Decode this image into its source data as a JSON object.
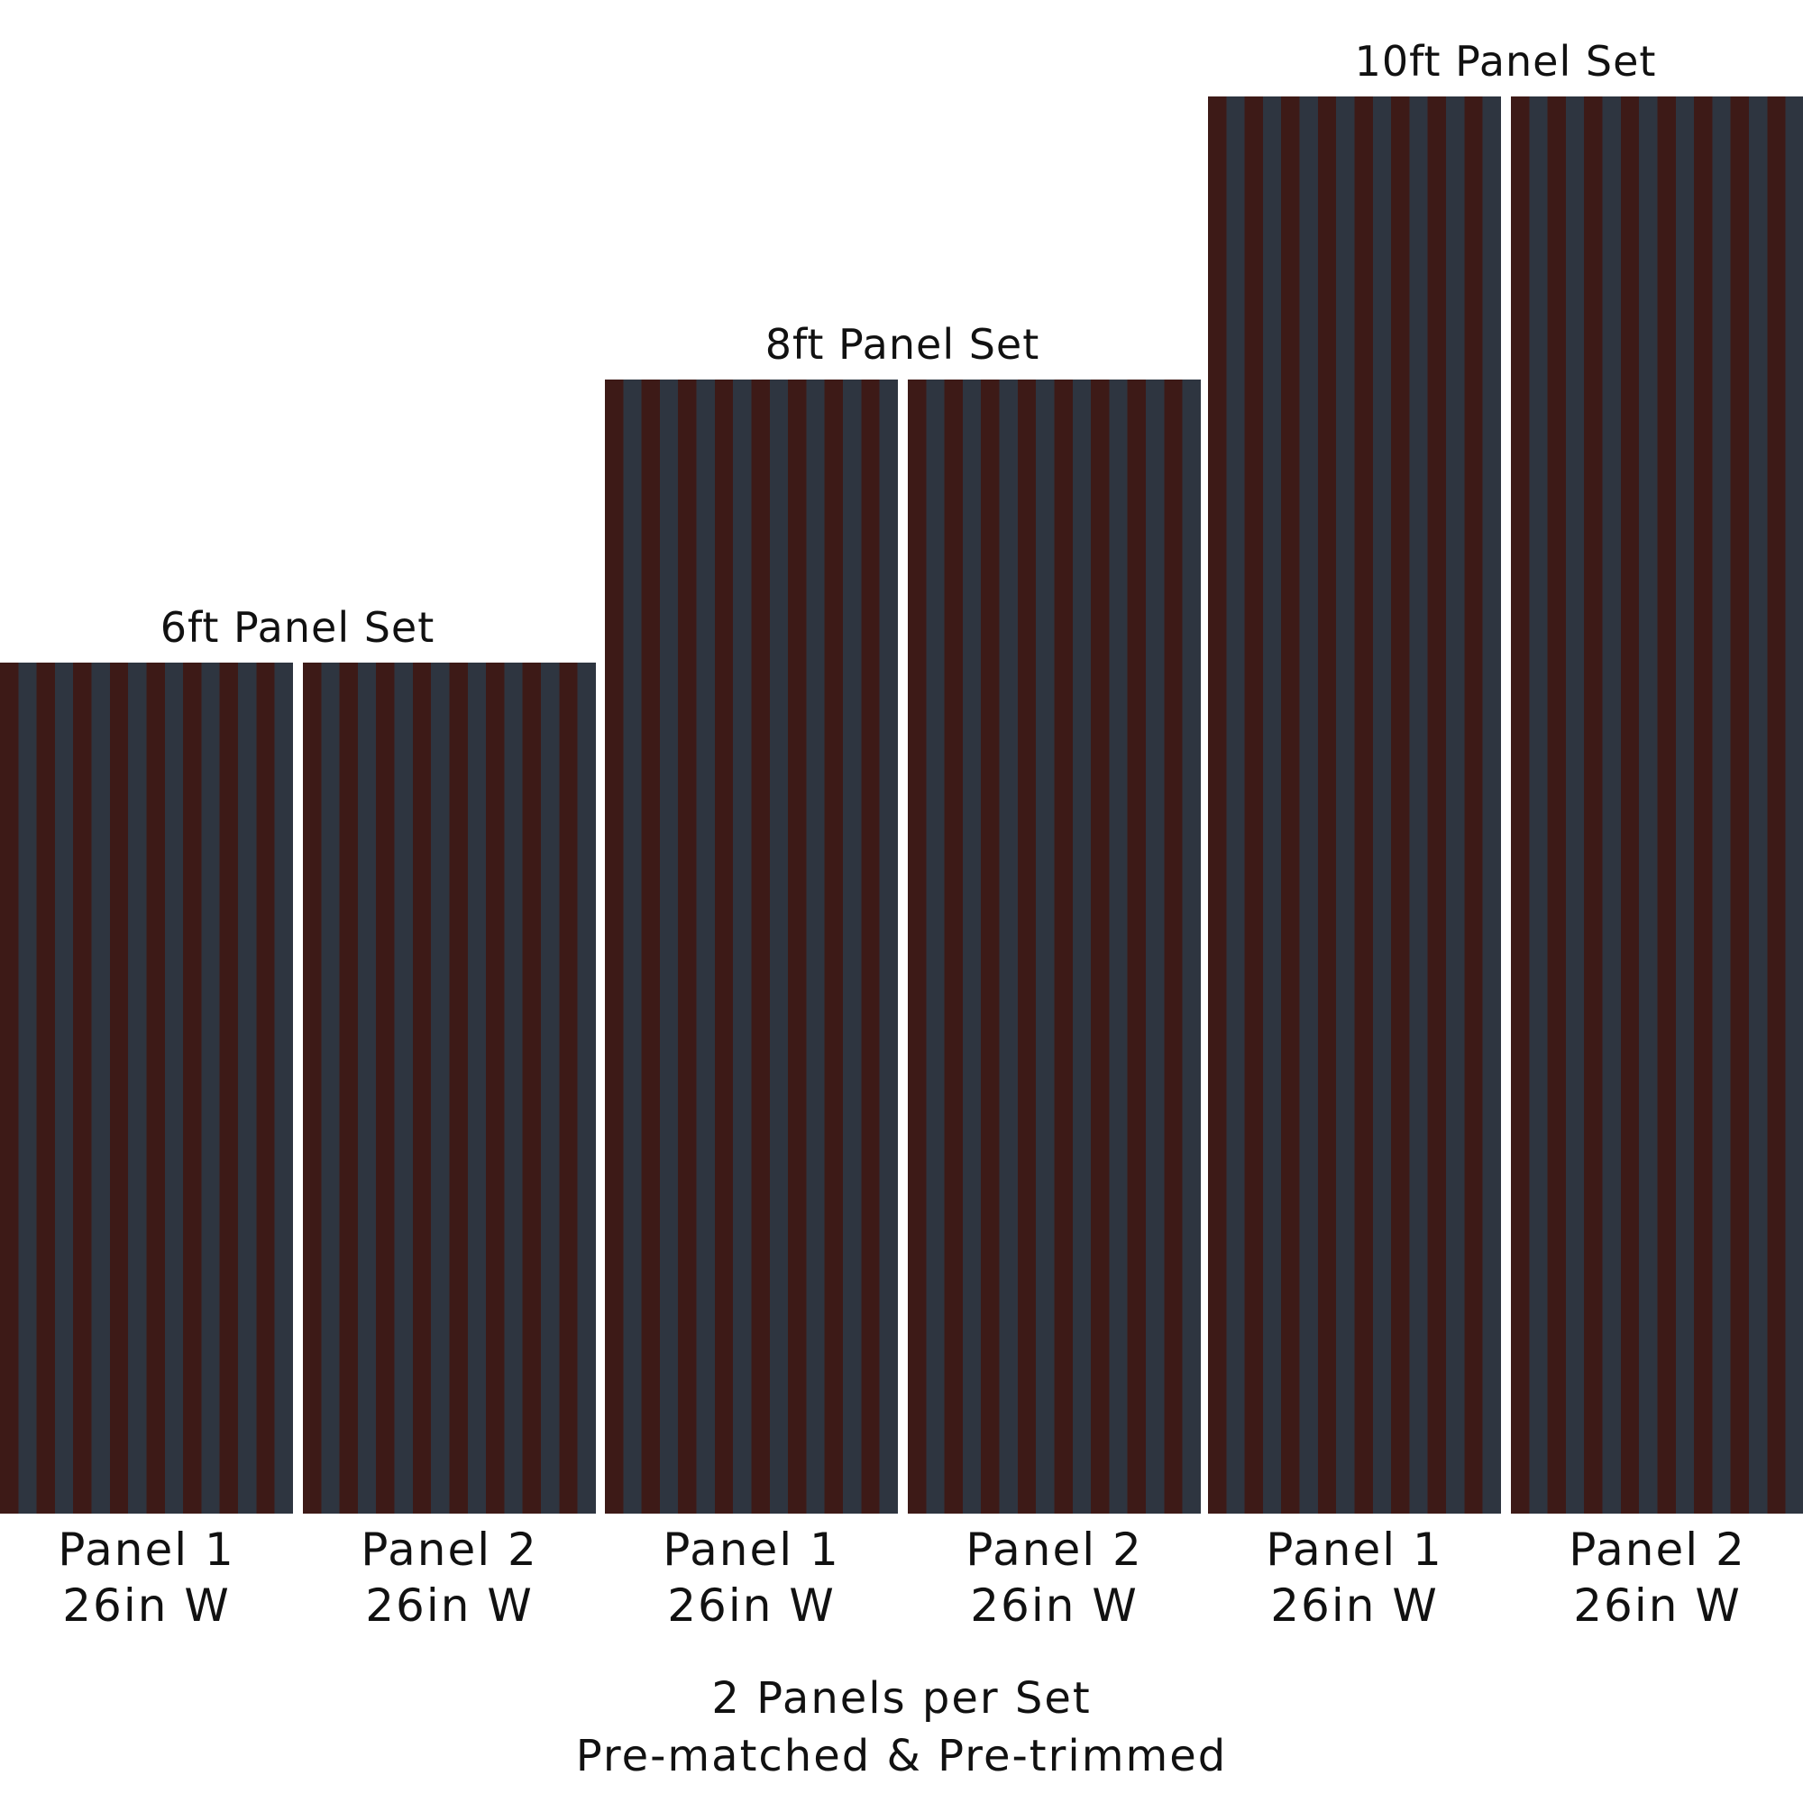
{
  "colors": {
    "stripe_brown": "#3d1a17",
    "stripe_slate": "#2e3540"
  },
  "sets": [
    {
      "title": "6ft Panel Set",
      "panels": [
        {
          "name": "Panel 1",
          "width": "26in W"
        },
        {
          "name": "Panel 2",
          "width": "26in W"
        }
      ]
    },
    {
      "title": "8ft Panel Set",
      "panels": [
        {
          "name": "Panel 1",
          "width": "26in W"
        },
        {
          "name": "Panel 2",
          "width": "26in W"
        }
      ]
    },
    {
      "title": "10ft Panel Set",
      "panels": [
        {
          "name": "Panel 1",
          "width": "26in W"
        },
        {
          "name": "Panel 2",
          "width": "26in W"
        }
      ]
    }
  ],
  "footer": {
    "line1": "2 Panels per Set",
    "line2": "Pre-matched & Pre-trimmed"
  }
}
